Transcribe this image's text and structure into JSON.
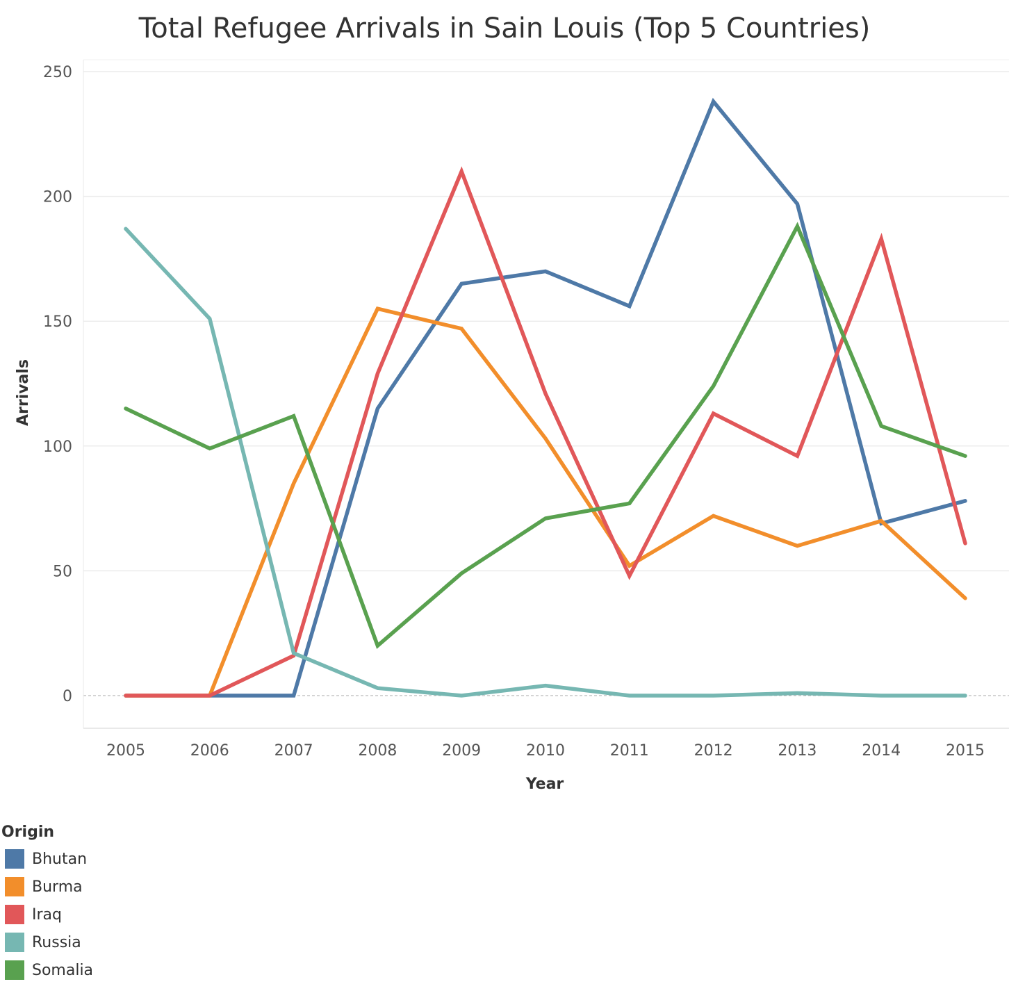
{
  "chart_data": {
    "type": "line",
    "title": "Total Refugee Arrivals in Sain Louis (Top 5 Countries)",
    "xlabel": "Year",
    "ylabel": "Arrivals",
    "x": [
      "2005",
      "2006",
      "2007",
      "2008",
      "2009",
      "2010",
      "2011",
      "2012",
      "2013",
      "2014",
      "2015"
    ],
    "ylim": [
      -12,
      250
    ],
    "yticks": [
      0,
      50,
      100,
      150,
      200,
      250
    ],
    "grid": true,
    "legend": {
      "title": "Origin",
      "placement": "bottom-left"
    },
    "series": [
      {
        "name": "Bhutan",
        "color": "#4e79a7",
        "values": [
          0,
          0,
          0,
          115,
          165,
          170,
          156,
          238,
          197,
          69,
          78
        ]
      },
      {
        "name": "Burma",
        "color": "#f28e2b",
        "values": [
          0,
          0,
          85,
          155,
          147,
          103,
          52,
          72,
          60,
          70,
          39
        ]
      },
      {
        "name": "Iraq",
        "color": "#e15759",
        "values": [
          0,
          0,
          16,
          129,
          210,
          121,
          48,
          113,
          96,
          183,
          61
        ]
      },
      {
        "name": "Russia",
        "color": "#76b7b2",
        "values": [
          187,
          151,
          17,
          3,
          0,
          4,
          0,
          0,
          1,
          0,
          0
        ]
      },
      {
        "name": "Somalia",
        "color": "#59a14f",
        "values": [
          115,
          99,
          112,
          20,
          49,
          71,
          77,
          124,
          188,
          108,
          96
        ]
      }
    ]
  }
}
